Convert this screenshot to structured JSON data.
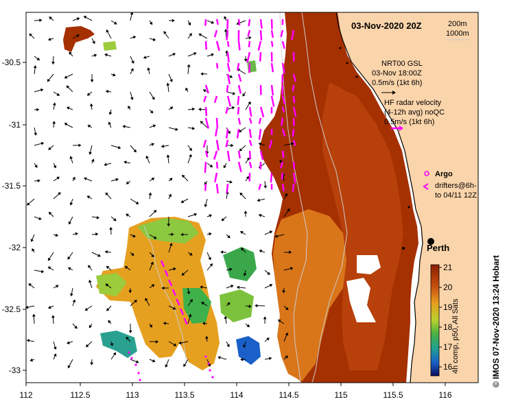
{
  "title": "03-Nov-2020 20Z",
  "depth_contours": [
    "200m",
    "1000m"
  ],
  "gsl_legend": {
    "line1": "NRT00 GSL",
    "line2": "03-Nov 18:00Z",
    "line3": "0.5m/s (1kt 6h)"
  },
  "hf_legend": {
    "line1": "HF radar velocity",
    "line2": "(4-12h avg) noQC",
    "line3": "0.5m/s (1kt 6h)"
  },
  "argo_label": "Argo",
  "drifters_label": {
    "line1": "drifters@6h-",
    "line2": "to 04/11 12Z"
  },
  "place_label": "Perth",
  "colorbar": {
    "label": "4h comp, p50, All Sats",
    "ticks": [
      "21",
      "20",
      "19",
      "18",
      "17",
      "16"
    ]
  },
  "credit": "© IMOS 07-Nov-2020 13:24 Hobart",
  "x_ticks": [
    "112",
    "112.5",
    "113",
    "113.5",
    "114",
    "114.5",
    "115",
    "115.5",
    "116"
  ],
  "y_ticks": [
    "-30.5",
    "-31",
    "-31.5",
    "-32",
    "-32.5",
    "-33"
  ],
  "colors": {
    "land": "#fad4aa",
    "warm_sst": "#9a2c00",
    "mid_sst": "#e6a020",
    "cool_sst": "#7bc83a",
    "hf_vectors": "#ff00ff",
    "gsl_vectors": "#000000"
  }
}
